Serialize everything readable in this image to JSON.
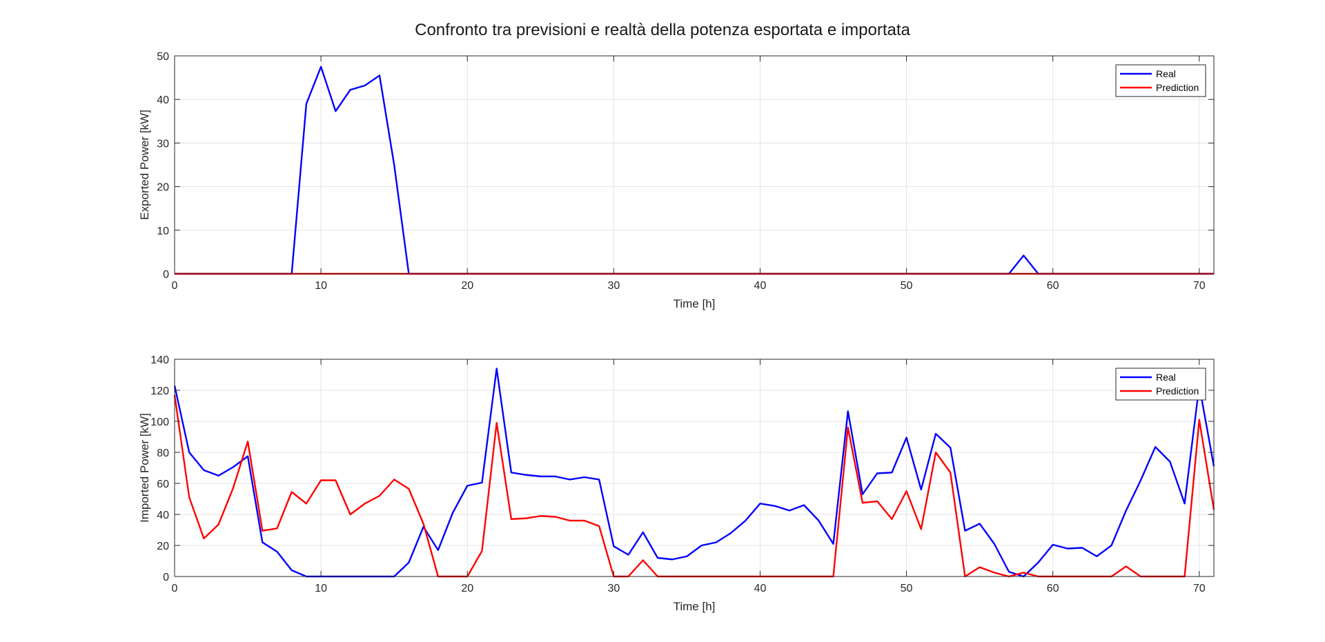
{
  "figure": {
    "title": "Confronto tra previsioni e realtà della potenza esportata e importata"
  },
  "chart_data": [
    {
      "type": "line",
      "xlabel": "Time [h]",
      "ylabel": "Exported Power [kW]",
      "xlim": [
        0,
        71
      ],
      "ylim": [
        0,
        50
      ],
      "xticks": [
        0,
        10,
        20,
        30,
        40,
        50,
        60,
        70
      ],
      "yticks": [
        0,
        10,
        20,
        30,
        40,
        50
      ],
      "grid": true,
      "legend_position": "top-right",
      "x": [
        0,
        1,
        2,
        3,
        4,
        5,
        6,
        7,
        8,
        9,
        10,
        11,
        12,
        13,
        14,
        15,
        16,
        17,
        18,
        19,
        20,
        21,
        22,
        23,
        24,
        25,
        26,
        27,
        28,
        29,
        30,
        31,
        32,
        33,
        34,
        35,
        36,
        37,
        38,
        39,
        40,
        41,
        42,
        43,
        44,
        45,
        46,
        47,
        48,
        49,
        50,
        51,
        52,
        53,
        54,
        55,
        56,
        57,
        58,
        59,
        60,
        61,
        62,
        63,
        64,
        65,
        66,
        67,
        68,
        69,
        70,
        71
      ],
      "series": [
        {
          "name": "Real",
          "color": "#0000ff",
          "values": [
            0,
            0,
            0,
            0,
            0,
            0,
            0,
            0,
            0,
            39,
            47.5,
            37.3,
            42.2,
            43.2,
            45.5,
            25,
            0,
            0,
            0,
            0,
            0,
            0,
            0,
            0,
            0,
            0,
            0,
            0,
            0,
            0,
            0,
            0,
            0,
            0,
            0,
            0,
            0,
            0,
            0,
            0,
            0,
            0,
            0,
            0,
            0,
            0,
            0,
            0,
            0,
            0,
            0,
            0,
            0,
            0,
            0,
            0,
            0,
            0,
            4.2,
            0,
            0,
            0,
            0,
            0,
            0,
            0,
            0,
            0,
            0,
            0,
            0,
            0
          ]
        },
        {
          "name": "Prediction",
          "color": "#ff0000",
          "values": [
            0,
            0,
            0,
            0,
            0,
            0,
            0,
            0,
            0,
            0,
            0,
            0,
            0,
            0,
            0,
            0,
            0,
            0,
            0,
            0,
            0,
            0,
            0,
            0,
            0,
            0,
            0,
            0,
            0,
            0,
            0,
            0,
            0,
            0,
            0,
            0,
            0,
            0,
            0,
            0,
            0,
            0,
            0,
            0,
            0,
            0,
            0,
            0,
            0,
            0,
            0,
            0,
            0,
            0,
            0,
            0,
            0,
            0,
            0,
            0,
            0,
            0,
            0,
            0,
            0,
            0,
            0,
            0,
            0,
            0,
            0,
            0
          ]
        }
      ]
    },
    {
      "type": "line",
      "xlabel": "Time [h]",
      "ylabel": "Imported Power [kW]",
      "xlim": [
        0,
        71
      ],
      "ylim": [
        0,
        140
      ],
      "xticks": [
        0,
        10,
        20,
        30,
        40,
        50,
        60,
        70
      ],
      "yticks": [
        0,
        20,
        40,
        60,
        80,
        100,
        120,
        140
      ],
      "grid": true,
      "legend_position": "top-right",
      "x": [
        0,
        1,
        2,
        3,
        4,
        5,
        6,
        7,
        8,
        9,
        10,
        11,
        12,
        13,
        14,
        15,
        16,
        17,
        18,
        19,
        20,
        21,
        22,
        23,
        24,
        25,
        26,
        27,
        28,
        29,
        30,
        31,
        32,
        33,
        34,
        35,
        36,
        37,
        38,
        39,
        40,
        41,
        42,
        43,
        44,
        45,
        46,
        47,
        48,
        49,
        50,
        51,
        52,
        53,
        54,
        55,
        56,
        57,
        58,
        59,
        60,
        61,
        62,
        63,
        64,
        65,
        66,
        67,
        68,
        69,
        70,
        71
      ],
      "series": [
        {
          "name": "Real",
          "color": "#0000ff",
          "values": [
            123,
            80,
            68.5,
            65,
            70.5,
            77.5,
            22,
            16,
            4,
            0,
            0,
            0,
            0,
            0,
            0,
            0,
            9,
            32,
            17,
            41,
            58.5,
            60.5,
            134,
            67,
            65.5,
            64.5,
            64.5,
            62.5,
            64,
            62.5,
            19.5,
            14,
            28.5,
            12,
            11,
            13,
            20,
            22,
            28,
            36,
            47,
            45.5,
            42.5,
            46,
            36,
            21,
            106.5,
            53,
            66.5,
            67,
            89.5,
            56,
            92,
            83,
            29.5,
            34,
            21,
            3,
            0,
            9,
            20.5,
            18,
            18.5,
            13,
            20,
            42.5,
            62,
            83.5,
            74,
            47,
            123,
            71
          ]
        },
        {
          "name": "Prediction",
          "color": "#ff0000",
          "values": [
            117,
            51,
            24.5,
            33.5,
            57,
            87,
            29.5,
            31,
            54.5,
            47,
            62,
            62,
            40,
            47,
            52,
            62.5,
            56.5,
            34,
            0,
            0,
            0,
            16.5,
            99,
            37,
            37.5,
            39,
            38.5,
            36,
            36,
            32.5,
            0,
            0,
            10.5,
            0,
            0,
            0,
            0,
            0,
            0,
            0,
            0,
            0,
            0,
            0,
            0,
            0,
            96,
            47.5,
            48.5,
            37,
            55,
            30.5,
            80,
            67,
            0,
            6,
            2.5,
            0,
            2.5,
            0,
            0,
            0,
            0,
            0,
            0,
            6.5,
            0,
            0,
            0,
            0,
            101,
            43
          ]
        }
      ]
    }
  ]
}
